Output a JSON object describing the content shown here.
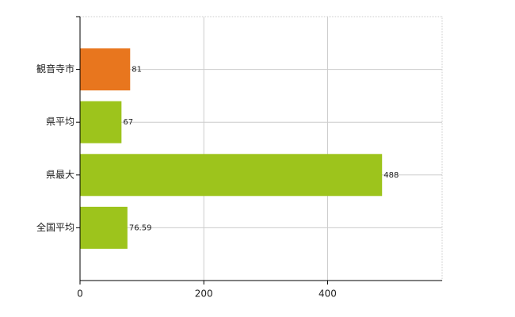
{
  "chart_data": {
    "type": "barh",
    "categories": [
      "観音寺市",
      "県平均",
      "県最大",
      "全国平均"
    ],
    "values": [
      81,
      67,
      488,
      76.59
    ],
    "colors": [
      "#e8761e",
      "#9dc41c",
      "#9dc41c",
      "#9dc41c"
    ],
    "xlim": [
      0,
      585
    ],
    "xticks": [
      0,
      200,
      400
    ],
    "grid": true
  }
}
